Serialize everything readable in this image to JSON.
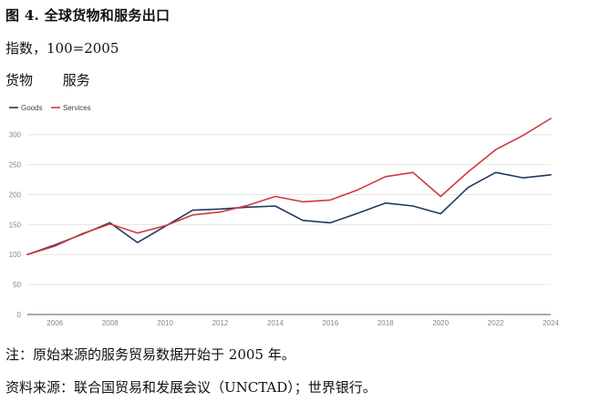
{
  "header": {
    "title": "图 4. 全球货物和服务出口",
    "subtitle": "指数，100=2005",
    "label_goods": "货物",
    "label_services": "服务"
  },
  "chart_data": {
    "type": "line",
    "x": [
      2005,
      2006,
      2007,
      2008,
      2009,
      2010,
      2011,
      2012,
      2013,
      2014,
      2015,
      2016,
      2017,
      2018,
      2019,
      2020,
      2021,
      2022,
      2023,
      2024
    ],
    "x_ticks": [
      2006,
      2008,
      2010,
      2012,
      2014,
      2016,
      2018,
      2020,
      2022,
      2024
    ],
    "y_ticks": [
      0,
      50,
      100,
      150,
      200,
      250,
      300
    ],
    "ylim": [
      0,
      330
    ],
    "xlim": [
      2005,
      2024
    ],
    "grid": true,
    "legend_position": "top-left",
    "series": [
      {
        "name": "Goods",
        "color": "#1f3a5f",
        "values": [
          100,
          116,
          134,
          153,
          120,
          147,
          174,
          176,
          179,
          181,
          157,
          153,
          169,
          186,
          181,
          168,
          212,
          237,
          228,
          233
        ]
      },
      {
        "name": "Services",
        "color": "#d0383f",
        "values": [
          100,
          114,
          135,
          151,
          136,
          148,
          166,
          171,
          182,
          197,
          188,
          191,
          208,
          230,
          237,
          197,
          238,
          275,
          299,
          327
        ]
      }
    ]
  },
  "footer": {
    "note": "注：原始来源的服务贸易数据开始于 2005 年。",
    "source": "资料来源：联合国贸易和发展会议（UNCTAD）；世界银行。"
  }
}
